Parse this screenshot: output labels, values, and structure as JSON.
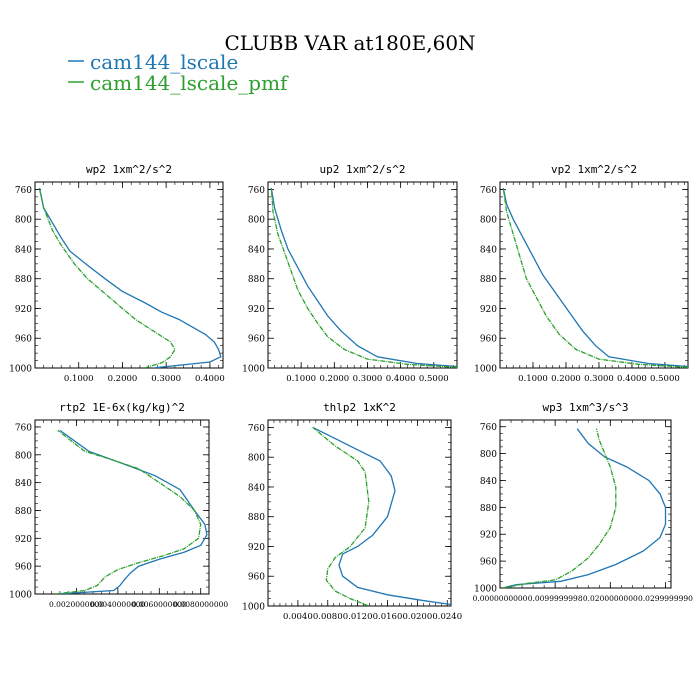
{
  "title": "CLUBB VAR at180E,60N",
  "legend": [
    {
      "label": "cam144_lscale",
      "color": "#1f77b4"
    },
    {
      "label": "cam144_lscale_pmf",
      "color": "#2ca02c"
    }
  ],
  "chart_data": [
    {
      "type": "line",
      "title": "wp2  1xm^2/s^2",
      "ylim": [
        1000,
        750
      ],
      "xlim": [
        0.0,
        0.43
      ],
      "yticks": [
        "760",
        "800",
        "840",
        "880",
        "920",
        "960",
        "1000"
      ],
      "xticks": [
        "0.1000",
        "0.2000",
        "0.3000",
        "0.4000"
      ],
      "grid": false,
      "series": [
        {
          "name": "cam144_lscale",
          "color": "#1f77b4",
          "x": [
            0.27,
            0.4,
            0.425,
            0.42,
            0.41,
            0.39,
            0.36,
            0.33,
            0.29,
            0.25,
            0.2,
            0.16,
            0.12,
            0.08,
            0.06,
            0.04,
            0.02,
            0.01
          ],
          "y": [
            1000,
            992,
            985,
            975,
            965,
            955,
            945,
            935,
            925,
            912,
            897,
            880,
            862,
            843,
            825,
            805,
            785,
            758
          ]
        },
        {
          "name": "cam144_lscale_pmf",
          "color": "#2ca02c",
          "x": [
            0.25,
            0.29,
            0.31,
            0.32,
            0.31,
            0.27,
            0.23,
            0.19,
            0.16,
            0.12,
            0.09,
            0.06,
            0.04,
            0.02,
            0.01
          ],
          "y": [
            1000,
            993,
            985,
            975,
            965,
            950,
            935,
            915,
            900,
            880,
            860,
            835,
            815,
            785,
            758
          ]
        }
      ]
    },
    {
      "type": "line",
      "title": "up2  1xm^2/s^2",
      "ylim": [
        1000,
        750
      ],
      "xlim": [
        0.0,
        0.57
      ],
      "yticks": [
        "760",
        "800",
        "840",
        "880",
        "920",
        "960",
        "1000"
      ],
      "xticks": [
        "0.1000",
        "0.2000",
        "0.3000",
        "0.4000",
        "0.5000"
      ],
      "grid": false,
      "series": [
        {
          "name": "cam144_lscale",
          "color": "#1f77b4",
          "x": [
            0.57,
            0.45,
            0.33,
            0.27,
            0.22,
            0.18,
            0.15,
            0.12,
            0.09,
            0.06,
            0.04,
            0.02,
            0.01
          ],
          "y": [
            998,
            994,
            985,
            970,
            950,
            930,
            910,
            890,
            865,
            840,
            815,
            785,
            758
          ]
        },
        {
          "name": "cam144_lscale_pmf",
          "color": "#2ca02c",
          "x": [
            0.57,
            0.42,
            0.3,
            0.23,
            0.18,
            0.15,
            0.12,
            0.09,
            0.07,
            0.05,
            0.03,
            0.015,
            0.01
          ],
          "y": [
            999,
            995,
            988,
            975,
            958,
            940,
            920,
            895,
            870,
            845,
            820,
            790,
            758
          ]
        }
      ]
    },
    {
      "type": "line",
      "title": "vp2  1xm^2/s^2",
      "ylim": [
        1000,
        750
      ],
      "xlim": [
        0.0,
        0.57
      ],
      "yticks": [
        "760",
        "800",
        "840",
        "880",
        "920",
        "960",
        "1000"
      ],
      "xticks": [
        "0.1000",
        "0.2000",
        "0.3000",
        "0.4000",
        "0.5000"
      ],
      "grid": false,
      "series": [
        {
          "name": "cam144_lscale",
          "color": "#1f77b4",
          "x": [
            0.57,
            0.45,
            0.33,
            0.29,
            0.25,
            0.21,
            0.17,
            0.13,
            0.1,
            0.07,
            0.04,
            0.02,
            0.01
          ],
          "y": [
            998,
            994,
            985,
            970,
            950,
            925,
            900,
            875,
            850,
            825,
            800,
            780,
            758
          ]
        },
        {
          "name": "cam144_lscale_pmf",
          "color": "#2ca02c",
          "x": [
            0.57,
            0.42,
            0.3,
            0.23,
            0.18,
            0.14,
            0.11,
            0.08,
            0.06,
            0.04,
            0.02,
            0.01
          ],
          "y": [
            999,
            995,
            988,
            975,
            955,
            930,
            905,
            880,
            850,
            820,
            790,
            758
          ]
        }
      ]
    },
    {
      "type": "line",
      "title": "rtp2  1E-6x(kg/kg)^2",
      "ylim": [
        1000,
        750
      ],
      "xlim": [
        0.0,
        0.0084
      ],
      "yticks": [
        "760",
        "800",
        "840",
        "880",
        "920",
        "960",
        "1000"
      ],
      "xticks": [
        "0.0020000000",
        "0.0040000000",
        "0.0060000000",
        "0.0080000000"
      ],
      "grid": false,
      "series": [
        {
          "name": "cam144_lscale",
          "color": "#1f77b4",
          "x": [
            0.0011,
            0.0038,
            0.0041,
            0.0043,
            0.0046,
            0.005,
            0.006,
            0.0072,
            0.008,
            0.0083,
            0.0082,
            0.0077,
            0.007,
            0.0058,
            0.004,
            0.0026,
            0.0012
          ],
          "y": [
            1000,
            995,
            988,
            980,
            970,
            960,
            950,
            940,
            930,
            915,
            900,
            880,
            850,
            830,
            810,
            795,
            765
          ]
        },
        {
          "name": "cam144_lscale_pmf",
          "color": "#2ca02c",
          "x": [
            0.001,
            0.0024,
            0.003,
            0.0034,
            0.004,
            0.005,
            0.0062,
            0.0072,
            0.0079,
            0.008,
            0.0077,
            0.007,
            0.006,
            0.005,
            0.0035,
            0.0024,
            0.0011
          ],
          "y": [
            1000,
            995,
            988,
            975,
            965,
            955,
            945,
            935,
            920,
            900,
            880,
            860,
            840,
            820,
            805,
            795,
            765
          ]
        }
      ]
    },
    {
      "type": "line",
      "title": "thlp2  1xK^2",
      "ylim": [
        1000,
        750
      ],
      "xlim": [
        0.0,
        0.0245
      ],
      "yticks": [
        "760",
        "800",
        "840",
        "880",
        "920",
        "960",
        "1000"
      ],
      "xticks": [
        "0.0040",
        "0.0080",
        "0.0120",
        "0.0160",
        "0.0200",
        "0.0240"
      ],
      "grid": false,
      "series": [
        {
          "name": "cam144_lscale",
          "color": "#1f77b4",
          "x": [
            0.0245,
            0.021,
            0.016,
            0.012,
            0.01,
            0.0095,
            0.01,
            0.012,
            0.014,
            0.016,
            0.017,
            0.0165,
            0.015,
            0.012,
            0.009,
            0.006
          ],
          "y": [
            998,
            993,
            985,
            975,
            960,
            945,
            930,
            920,
            905,
            880,
            845,
            825,
            805,
            790,
            775,
            760
          ]
        },
        {
          "name": "cam144_lscale_pmf",
          "color": "#2ca02c",
          "x": [
            0.0135,
            0.011,
            0.009,
            0.0078,
            0.008,
            0.009,
            0.011,
            0.013,
            0.0135,
            0.013,
            0.012,
            0.009,
            0.006
          ],
          "y": [
            1000,
            990,
            980,
            965,
            950,
            935,
            920,
            895,
            860,
            820,
            805,
            785,
            760
          ]
        }
      ]
    },
    {
      "type": "line",
      "title": "wp3  1xm^3/s^3",
      "ylim": [
        1000,
        750
      ],
      "xlim": [
        0.0,
        0.031
      ],
      "yticks": [
        "760",
        "800",
        "840",
        "880",
        "920",
        "960",
        "1000"
      ],
      "xticks": [
        "0.0000000000",
        "0.0099999998",
        "0.0200000000",
        "0.0299999990"
      ],
      "grid": false,
      "series": [
        {
          "name": "cam144_lscale",
          "color": "#1f77b4",
          "x": [
            0.0005,
            0.003,
            0.011,
            0.016,
            0.021,
            0.026,
            0.029,
            0.03,
            0.03,
            0.029,
            0.027,
            0.023,
            0.019,
            0.016,
            0.014
          ],
          "y": [
            1000,
            995,
            990,
            980,
            965,
            945,
            925,
            905,
            880,
            860,
            840,
            820,
            805,
            785,
            763
          ]
        },
        {
          "name": "cam144_lscale_pmf",
          "color": "#2ca02c",
          "x": [
            0.0005,
            0.005,
            0.01,
            0.013,
            0.016,
            0.018,
            0.02,
            0.021,
            0.021,
            0.02,
            0.019,
            0.018,
            0.0175
          ],
          "y": [
            1000,
            993,
            988,
            975,
            955,
            935,
            910,
            880,
            850,
            820,
            800,
            780,
            763
          ]
        }
      ]
    }
  ]
}
